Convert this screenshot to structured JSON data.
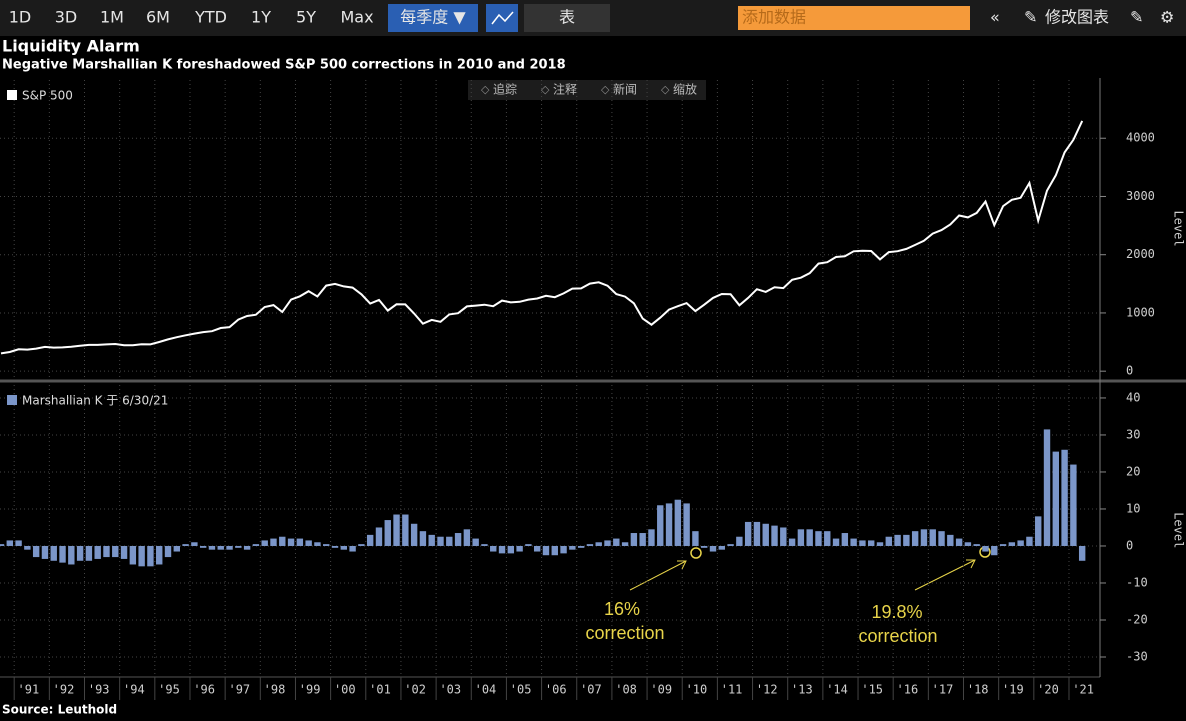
{
  "toolbar": {
    "ranges": [
      "1D",
      "3D",
      "1M",
      "6M",
      "YTD",
      "1Y",
      "5Y",
      "Max"
    ],
    "frequency": "每季度 ▼",
    "table": "表",
    "add_data": "添加数据",
    "edit_chart": "修改图表"
  },
  "chart_tools": [
    "追踪",
    "注释",
    "新闻",
    "缩放"
  ],
  "title": "Liquidity Alarm",
  "subtitle": "Negative Marshallian K foreshadowed S&P 500 corrections in 2010 and 2018",
  "source": "Source: Leuthold",
  "chart_data": [
    {
      "type": "line",
      "y_label": "Level",
      "grid": true,
      "ylim": [
        -100,
        5000
      ],
      "yticks": [
        0,
        1000,
        2000,
        3000,
        4000
      ],
      "series": [
        {
          "name": "S&P 500",
          "color": "#ffffff",
          "values": [
            306,
            330,
            375,
            371,
            388,
            417,
            404,
            408,
            418,
            436,
            452,
            451,
            459,
            466,
            446,
            444,
            463,
            459,
            501,
            545,
            584,
            616,
            645,
            671,
            687,
            741,
            757,
            885,
            947,
            970,
            1102,
            1134,
            1017,
            1229,
            1286,
            1373,
            1283,
            1469,
            1499,
            1455,
            1436,
            1320,
            1160,
            1224,
            1041,
            1148,
            1147,
            990,
            815,
            880,
            848,
            975,
            996,
            1112,
            1126,
            1141,
            1115,
            1212,
            1181,
            1191,
            1229,
            1248,
            1295,
            1270,
            1336,
            1418,
            1421,
            1503,
            1527,
            1468,
            1323,
            1280,
            1166,
            903,
            798,
            919,
            1057,
            1115,
            1169,
            1031,
            1141,
            1258,
            1326,
            1321,
            1131,
            1258,
            1408,
            1362,
            1441,
            1426,
            1569,
            1606,
            1682,
            1848,
            1872,
            1960,
            1972,
            2059,
            2068,
            2063,
            1920,
            2044,
            2060,
            2099,
            2168,
            2239,
            2363,
            2423,
            2519,
            2674,
            2641,
            2718,
            2914,
            2507,
            2834,
            2942,
            2977,
            3231,
            2585,
            3100,
            3363,
            3756,
            3973,
            4298
          ]
        }
      ]
    },
    {
      "type": "bar",
      "y_label": "Level",
      "grid": true,
      "ylim": [
        -35,
        43.5
      ],
      "yticks": [
        -30,
        -20,
        -10,
        0,
        10,
        20,
        30,
        40
      ],
      "categories": [
        null,
        null,
        null,
        "'91",
        null,
        null,
        null,
        "'92",
        null,
        null,
        null,
        "'93",
        null,
        null,
        null,
        "'94",
        null,
        null,
        null,
        "'95",
        null,
        null,
        null,
        "'96",
        null,
        null,
        null,
        "'97",
        null,
        null,
        null,
        "'98",
        null,
        null,
        null,
        "'99",
        null,
        null,
        null,
        "'00",
        null,
        null,
        null,
        "'01",
        null,
        null,
        null,
        "'02",
        null,
        null,
        null,
        "'03",
        null,
        null,
        null,
        "'04",
        null,
        null,
        null,
        "'05",
        null,
        null,
        null,
        "'06",
        null,
        null,
        null,
        "'07",
        null,
        null,
        null,
        "'08",
        null,
        null,
        null,
        "'09",
        null,
        null,
        null,
        "'10",
        null,
        null,
        null,
        "'11",
        null,
        null,
        null,
        "'12",
        null,
        null,
        null,
        "'13",
        null,
        null,
        null,
        "'14",
        null,
        null,
        null,
        "'15",
        null,
        null,
        null,
        "'16",
        null,
        null,
        null,
        "'17",
        null,
        null,
        null,
        "'18",
        null,
        null,
        null,
        "'19",
        null,
        null,
        null,
        "'20",
        null,
        null,
        null,
        "'21"
      ],
      "series": [
        {
          "name": "Marshallian K 于 6/30/21",
          "color": "#7b96c9",
          "values": [
            0.5,
            1.5,
            1.5,
            -1,
            -3,
            -3.5,
            -4,
            -4.5,
            -5,
            -4,
            -4,
            -3.5,
            -3,
            -3,
            -3.5,
            -5,
            -5.5,
            -5.5,
            -5,
            -3,
            -1.5,
            0.5,
            1,
            -0.5,
            -1,
            -1,
            -1,
            -0.5,
            -1,
            0.5,
            1.5,
            2,
            2.5,
            2,
            2,
            1.5,
            1,
            0.5,
            -0.5,
            -1,
            -1.5,
            0.5,
            3,
            5,
            7,
            8.5,
            8.5,
            6,
            4,
            3,
            2.5,
            2.5,
            3.5,
            4.5,
            2,
            0.5,
            -1.5,
            -2,
            -2,
            -1.5,
            0.5,
            -1.5,
            -2.5,
            -2.5,
            -2,
            -1,
            -0.5,
            0.5,
            1,
            1.5,
            2,
            1,
            3.5,
            3.5,
            4.5,
            11,
            11.5,
            12.5,
            11.5,
            4,
            -0.5,
            -1.5,
            -1,
            0.5,
            2.5,
            6.5,
            6.5,
            6,
            5.5,
            5,
            2,
            4.5,
            4.5,
            4,
            4,
            2,
            3.5,
            2,
            1.5,
            1.5,
            1,
            2.5,
            3,
            3,
            4,
            4.5,
            4.5,
            4,
            3,
            2,
            1,
            0.5,
            -1.5,
            -2.5,
            0.5,
            1,
            1.5,
            2.5,
            8,
            31.5,
            25.5,
            26,
            22,
            -4
          ]
        }
      ],
      "annotations": [
        [
          "16%",
          "correction"
        ],
        [
          "19.8%",
          "correction"
        ]
      ]
    }
  ]
}
